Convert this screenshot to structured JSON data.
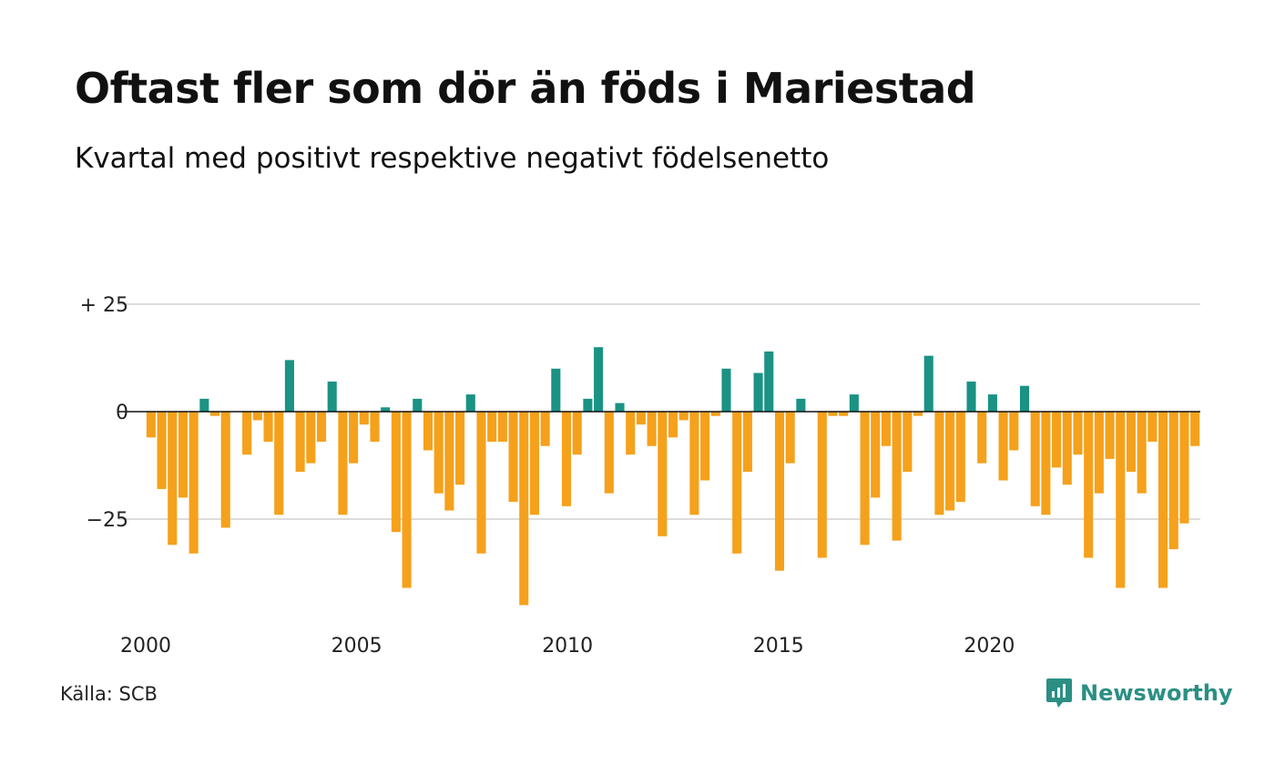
{
  "title": "Oftast fler som dör än föds i Mariestad",
  "subtitle": "Kvartal med positivt respektive negativt födelsenetto",
  "source": "Källa: SCB",
  "brand": {
    "name": "Newsworthy",
    "icon": "newsworthy-logo-icon"
  },
  "colors": {
    "positive": "#1a9284",
    "negative": "#f5a11c",
    "grid": "#dddddd",
    "zero": "#111111"
  },
  "chart_data": {
    "type": "bar",
    "title": "Oftast fler som dör än föds i Mariestad",
    "subtitle": "Kvartal med positivt respektive negativt födelsenetto",
    "xlabel": "",
    "ylabel": "",
    "x_start": 2000,
    "x_end": 2025,
    "xticks": [
      2000,
      2005,
      2010,
      2015,
      2020
    ],
    "yticks": [
      {
        "value": 25,
        "label": "+ 25"
      },
      {
        "value": 0,
        "label": "0"
      },
      {
        "value": -25,
        "label": "−25"
      }
    ],
    "ylim": [
      -46,
      25
    ],
    "grid": true,
    "values": [
      -6,
      -18,
      -31,
      -20,
      -33,
      3,
      -1,
      -27,
      0,
      -10,
      -2,
      -7,
      -24,
      12,
      -14,
      -12,
      -7,
      7,
      -24,
      -12,
      -3,
      -7,
      1,
      -28,
      -41,
      3,
      -9,
      -19,
      -23,
      -17,
      4,
      -33,
      -7,
      -7,
      -21,
      -45,
      -24,
      -8,
      10,
      -22,
      -10,
      3,
      15,
      -19,
      2,
      -10,
      -3,
      -8,
      -29,
      -6,
      -2,
      -24,
      -16,
      -1,
      10,
      -33,
      -14,
      9,
      14,
      -37,
      -12,
      3,
      0,
      -34,
      -1,
      -1,
      4,
      -31,
      -20,
      -8,
      -30,
      -14,
      -1,
      13,
      -24,
      -23,
      -21,
      7,
      -12,
      4,
      -16,
      -9,
      6,
      -22,
      -24,
      -13,
      -17,
      -10,
      -34,
      -19,
      -11,
      -41,
      -14,
      -19,
      -7,
      -41,
      -32,
      -26,
      -8
    ]
  }
}
